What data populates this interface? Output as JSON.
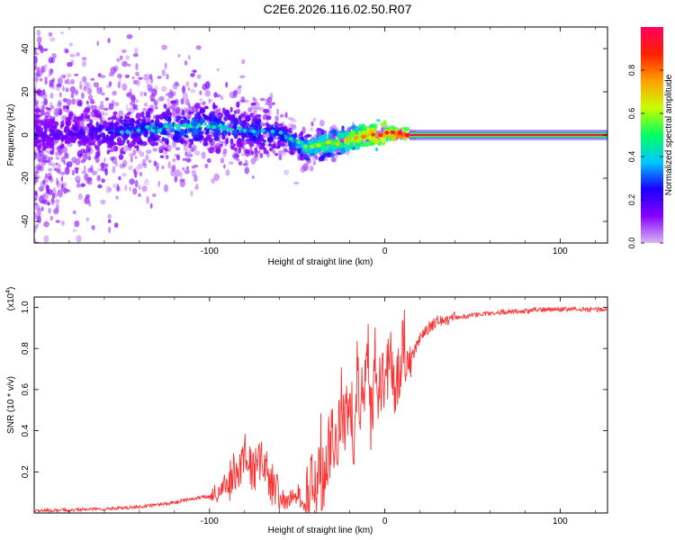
{
  "title": "C2E6.2026.116.02.50.R07",
  "chart_data": [
    {
      "type": "heatmap",
      "name": "spectrogram",
      "xlabel": "Height of straight line (km)",
      "ylabel": "Frequency (Hz)",
      "xlim": [
        -200,
        127
      ],
      "ylim": [
        -50,
        50
      ],
      "x_ticks": [
        -100,
        0,
        100
      ],
      "y_ticks": [
        -40,
        -20,
        0,
        20,
        40
      ],
      "grid": false,
      "colorbar": {
        "label": "Normalized spectral amplitude",
        "range": [
          0,
          1
        ],
        "ticks": [
          "0.0",
          "0.2",
          "0.4",
          "0.6",
          "0.8"
        ],
        "colors": [
          "#d8b8f0",
          "#8800ff",
          "#1a00ff",
          "#00c8ff",
          "#00ff60",
          "#c8ff00",
          "#ffa000",
          "#ff2000",
          "#ff0060"
        ]
      },
      "ridge": {
        "x": [
          -200,
          -180,
          -160,
          -140,
          -120,
          -100,
          -80,
          -60,
          -50,
          -45,
          -40,
          -30,
          -20,
          -10,
          0,
          10,
          20,
          50,
          100,
          127
        ],
        "y": [
          0,
          1,
          1.5,
          2.5,
          3.5,
          4,
          2.5,
          0.5,
          -4,
          -6,
          -5,
          -4,
          -2,
          0,
          0.5,
          0.3,
          0,
          0,
          0,
          0
        ],
        "amplitude": [
          0.2,
          0.2,
          0.25,
          0.3,
          0.35,
          0.35,
          0.3,
          0.3,
          0.4,
          0.45,
          0.5,
          0.55,
          0.6,
          0.7,
          0.8,
          0.85,
          0.9,
          0.95,
          0.95,
          0.95
        ]
      }
    },
    {
      "type": "line",
      "name": "snr",
      "xlabel": "Height of straight line (km)",
      "ylabel": "SNR (10 * v/v)",
      "y_multiplier": "(x10",
      "y_multiplier_exp": "4",
      "xlim": [
        -200,
        127
      ],
      "ylim": [
        0,
        1.05
      ],
      "x_ticks": [
        -100,
        0,
        100
      ],
      "y_ticks": [
        0.2,
        0.4,
        0.6,
        0.8,
        1.0
      ],
      "grid": false,
      "color": "#ff3030",
      "series": [
        {
          "x": [
            -200,
            -180,
            -160,
            -140,
            -130,
            -120,
            -110,
            -100,
            -95,
            -90,
            -85,
            -80,
            -75,
            -70,
            -65,
            -60,
            -55,
            -50,
            -45,
            -40,
            -35,
            -30,
            -27,
            -25,
            -22,
            -20,
            -18,
            -15,
            -12,
            -10,
            -8,
            -5,
            -2,
            0,
            5,
            10,
            15,
            20,
            25,
            30,
            40,
            50,
            60,
            70,
            80,
            90,
            100,
            110,
            127
          ],
          "y": [
            0.01,
            0.015,
            0.02,
            0.03,
            0.04,
            0.05,
            0.07,
            0.08,
            0.1,
            0.15,
            0.2,
            0.28,
            0.2,
            0.25,
            0.15,
            0.07,
            0.05,
            0.1,
            0.03,
            0.15,
            0.2,
            0.4,
            0.3,
            0.55,
            0.45,
            0.65,
            0.35,
            0.6,
            0.5,
            0.7,
            0.45,
            0.65,
            0.55,
            0.72,
            0.62,
            0.8,
            0.75,
            0.85,
            0.9,
            0.93,
            0.95,
            0.96,
            0.97,
            0.98,
            0.98,
            0.99,
            0.99,
            0.99,
            0.99
          ]
        }
      ]
    }
  ]
}
